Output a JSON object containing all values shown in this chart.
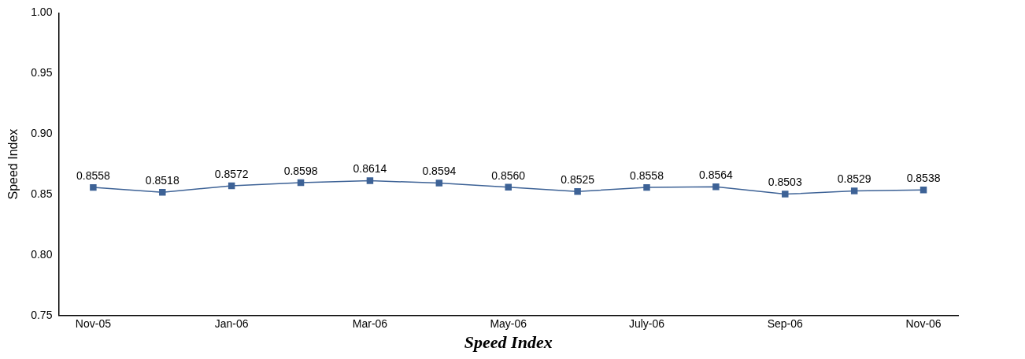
{
  "chart_data": {
    "type": "line",
    "xlabel": "Speed Index",
    "ylabel": "Speed Index",
    "categories": [
      "Nov-05",
      null,
      "Jan-06",
      null,
      "Mar-06",
      null,
      "May-06",
      null,
      "July-06",
      null,
      "Sep-06",
      null,
      "Nov-06"
    ],
    "series": [
      {
        "color": "#3d6296",
        "values": [
          0.8558,
          0.8518,
          0.8572,
          0.8598,
          0.8614,
          0.8594,
          0.856,
          0.8525,
          0.8558,
          0.8564,
          0.8503,
          0.8529,
          0.8538
        ],
        "value_labels": [
          "0.8558",
          "0.8518",
          "0.8572",
          "0.8598",
          "0.8614",
          "0.8594",
          "0.8560",
          "0.8525",
          "0.8558",
          "0.8564",
          "0.8503",
          "0.8529",
          "0.8538"
        ]
      }
    ],
    "ylim": [
      0.75,
      1.0
    ],
    "yticks": [
      0.75,
      {
        "value": 0.8,
        "label": "0.80"
      },
      0.85,
      {
        "value": 0.9,
        "label": "0.90"
      },
      0.95,
      {
        "value": 1.0,
        "label": "1.00"
      }
    ],
    "grid": false,
    "legend": false,
    "marker": "square",
    "line_style": "solid"
  }
}
